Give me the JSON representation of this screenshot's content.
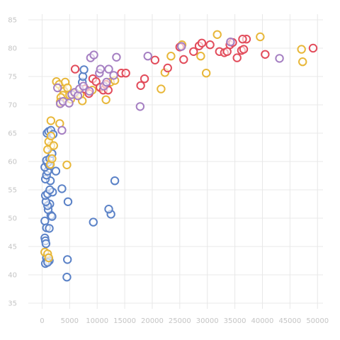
{
  "chart_data": {
    "type": "scatter",
    "title": "",
    "xlabel": "",
    "ylabel": "",
    "xlim": [
      -2500,
      51000
    ],
    "ylim": [
      34,
      86
    ],
    "x_ticks": [
      "0",
      "5000",
      "10000",
      "15000",
      "20000",
      "25000",
      "30000",
      "35000",
      "40000",
      "45000",
      "50000"
    ],
    "y_ticks": [
      "35",
      "40",
      "45",
      "50",
      "55",
      "60",
      "65",
      "70",
      "75",
      "80",
      "85"
    ],
    "grid": true,
    "legend": "none",
    "series": [
      {
        "color": "#5b82c7",
        "points": [
          [
            500,
            46.5
          ],
          [
            600,
            46
          ],
          [
            700,
            45.5
          ],
          [
            500,
            44
          ],
          [
            800,
            43
          ],
          [
            1000,
            42.5
          ],
          [
            1300,
            42.5
          ],
          [
            600,
            42
          ],
          [
            1000,
            42.2
          ],
          [
            4600,
            42.7
          ],
          [
            4500,
            39.6
          ],
          [
            500,
            49.5
          ],
          [
            800,
            48.3
          ],
          [
            1300,
            48.2
          ],
          [
            1600,
            50.5
          ],
          [
            1800,
            50.3
          ],
          [
            1100,
            51.5
          ],
          [
            1400,
            52.5
          ],
          [
            1000,
            52.2
          ],
          [
            4700,
            52.9
          ],
          [
            700,
            52.9
          ],
          [
            600,
            54
          ],
          [
            1000,
            54.3
          ],
          [
            1900,
            54.6
          ],
          [
            1400,
            55
          ],
          [
            3600,
            55.2
          ],
          [
            1500,
            56.6
          ],
          [
            600,
            56.9
          ],
          [
            800,
            57.6
          ],
          [
            2500,
            58.3
          ],
          [
            1000,
            58.3
          ],
          [
            500,
            59
          ],
          [
            1300,
            59.3
          ],
          [
            1000,
            59.8
          ],
          [
            800,
            60.2
          ],
          [
            1400,
            60.5
          ],
          [
            1800,
            61.4
          ],
          [
            900,
            65
          ],
          [
            1200,
            65.3
          ],
          [
            1600,
            65.5
          ],
          [
            2000,
            64.8
          ],
          [
            9300,
            49.3
          ],
          [
            12500,
            50.7
          ],
          [
            12100,
            51.6
          ],
          [
            13200,
            56.6
          ],
          [
            7300,
            74
          ],
          [
            7400,
            75
          ],
          [
            7600,
            76.2
          ]
        ]
      },
      {
        "color": "#e8b739",
        "points": [
          [
            500,
            44
          ],
          [
            1000,
            43.7
          ],
          [
            1200,
            43
          ],
          [
            1500,
            59.5
          ],
          [
            1800,
            60.5
          ],
          [
            4500,
            59.4
          ],
          [
            1600,
            62.8
          ],
          [
            1200,
            63.5
          ],
          [
            1600,
            64.5
          ],
          [
            2100,
            62.8
          ],
          [
            1000,
            62.1
          ],
          [
            3200,
            66.7
          ],
          [
            1600,
            67.2
          ],
          [
            2600,
            74.1
          ],
          [
            3100,
            73.6
          ],
          [
            4200,
            74
          ],
          [
            3700,
            72.8
          ],
          [
            4000,
            72.4
          ],
          [
            4600,
            73
          ],
          [
            3800,
            71.7
          ],
          [
            3400,
            71.3
          ],
          [
            3300,
            70.5
          ],
          [
            5200,
            71
          ],
          [
            5000,
            71.7
          ],
          [
            6100,
            72
          ],
          [
            6900,
            71.8
          ],
          [
            7300,
            70.7
          ],
          [
            9100,
            72.6
          ],
          [
            10600,
            73
          ],
          [
            11600,
            70.9
          ],
          [
            12400,
            74
          ],
          [
            13200,
            74.3
          ],
          [
            21600,
            72.8
          ],
          [
            22300,
            75.7
          ],
          [
            23400,
            78.6
          ],
          [
            25400,
            80.6
          ],
          [
            28800,
            78.6
          ],
          [
            29800,
            75.6
          ],
          [
            31800,
            82.4
          ],
          [
            39600,
            82
          ],
          [
            47100,
            79.8
          ],
          [
            47300,
            77.6
          ]
        ]
      },
      {
        "color": "#e24c5b",
        "points": [
          [
            6000,
            76.3
          ],
          [
            7800,
            72.8
          ],
          [
            8500,
            72
          ],
          [
            9200,
            74.6
          ],
          [
            9800,
            74.1
          ],
          [
            10500,
            73.1
          ],
          [
            11100,
            72.6
          ],
          [
            11600,
            73.6
          ],
          [
            12000,
            72.6
          ],
          [
            14400,
            75.6
          ],
          [
            15200,
            75.6
          ],
          [
            17900,
            73.4
          ],
          [
            18600,
            74.6
          ],
          [
            20500,
            77.9
          ],
          [
            22800,
            76.5
          ],
          [
            25000,
            80.2
          ],
          [
            25700,
            78
          ],
          [
            27500,
            79.4
          ],
          [
            28500,
            80.4
          ],
          [
            29000,
            80.9
          ],
          [
            30500,
            80.6
          ],
          [
            32200,
            79.4
          ],
          [
            33100,
            79.2
          ],
          [
            33600,
            79.4
          ],
          [
            34100,
            80.6
          ],
          [
            34600,
            81
          ],
          [
            35400,
            78.3
          ],
          [
            36200,
            79.6
          ],
          [
            36600,
            79.8
          ],
          [
            37100,
            81.6
          ],
          [
            36400,
            81.6
          ],
          [
            40500,
            78.9
          ],
          [
            49200,
            80
          ]
        ]
      },
      {
        "color": "#a57fc2",
        "points": [
          [
            2800,
            73
          ],
          [
            3300,
            70.2
          ],
          [
            3600,
            65.5
          ],
          [
            3800,
            70.6
          ],
          [
            4900,
            70.3
          ],
          [
            5400,
            71.8
          ],
          [
            5900,
            72.2
          ],
          [
            6500,
            71.6
          ],
          [
            6800,
            72.8
          ],
          [
            7500,
            73.3
          ],
          [
            8600,
            72.4
          ],
          [
            8800,
            78.3
          ],
          [
            9400,
            78.8
          ],
          [
            10400,
            75.6
          ],
          [
            10600,
            76.3
          ],
          [
            11200,
            73.3
          ],
          [
            11700,
            74
          ],
          [
            12100,
            76.3
          ],
          [
            13000,
            75.2
          ],
          [
            13500,
            78.4
          ],
          [
            17800,
            69.7
          ],
          [
            19200,
            78.6
          ],
          [
            25300,
            80.3
          ],
          [
            34200,
            81.1
          ],
          [
            43100,
            78.2
          ]
        ]
      }
    ]
  }
}
